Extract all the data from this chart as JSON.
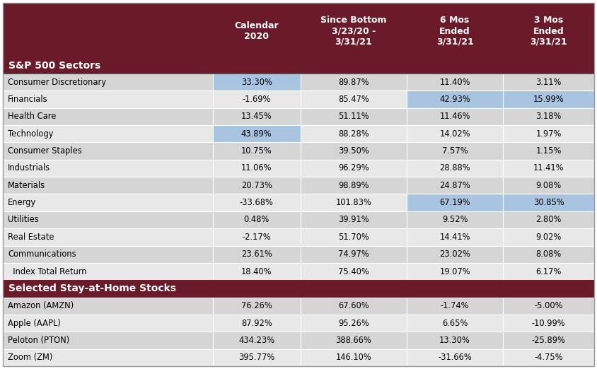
{
  "title_bg_color": "#6B1A2A",
  "header_text_color": "#FFFFFF",
  "section_header_bg": "#6B1A2A",
  "row_color_a": "#D5D5D5",
  "row_color_b": "#E8E8E8",
  "highlight_blue": "#A8C4E0",
  "col_header_line1": [
    "",
    "Since Bottom",
    "6 Mos",
    "3 Mos"
  ],
  "col_header_line2": [
    "Calendar",
    "3/23/20 -",
    "Ended",
    "Ended"
  ],
  "col_header_line3": [
    "2020",
    "3/31/21",
    "3/31/21",
    "3/31/21"
  ],
  "col0_header": "S&P 500 Sectors",
  "sector_rows": [
    {
      "name": "Consumer Discretionary",
      "vals": [
        "33.30%",
        "89.87%",
        "11.40%",
        "3.11%"
      ],
      "hl": [
        1
      ]
    },
    {
      "name": "Financials",
      "vals": [
        "-1.69%",
        "85.47%",
        "42.93%",
        "15.99%"
      ],
      "hl": [
        3,
        4
      ]
    },
    {
      "name": "Health Care",
      "vals": [
        "13.45%",
        "51.11%",
        "11.46%",
        "3.18%"
      ],
      "hl": []
    },
    {
      "name": "Technology",
      "vals": [
        "43.89%",
        "88.28%",
        "14.02%",
        "1.97%"
      ],
      "hl": [
        1
      ]
    },
    {
      "name": "Consumer Staples",
      "vals": [
        "10.75%",
        "39.50%",
        "7.57%",
        "1.15%"
      ],
      "hl": []
    },
    {
      "name": "Industrials",
      "vals": [
        "11.06%",
        "96.29%",
        "28.88%",
        "11.41%"
      ],
      "hl": []
    },
    {
      "name": "Materials",
      "vals": [
        "20.73%",
        "98.89%",
        "24.87%",
        "9.08%"
      ],
      "hl": []
    },
    {
      "name": "Energy",
      "vals": [
        "-33.68%",
        "101.83%",
        "67.19%",
        "30.85%"
      ],
      "hl": [
        3,
        4
      ]
    },
    {
      "name": "Utilities",
      "vals": [
        "0.48%",
        "39.91%",
        "9.52%",
        "2.80%"
      ],
      "hl": []
    },
    {
      "name": "Real Estate",
      "vals": [
        "-2.17%",
        "51.70%",
        "14.41%",
        "9.02%"
      ],
      "hl": []
    },
    {
      "name": "Communications",
      "vals": [
        "23.61%",
        "74.97%",
        "23.02%",
        "8.08%"
      ],
      "hl": []
    },
    {
      "name": "  Index Total Return",
      "vals": [
        "18.40%",
        "75.40%",
        "19.07%",
        "6.17%"
      ],
      "hl": []
    }
  ],
  "stock_rows": [
    {
      "name": "Amazon (AMZN)",
      "vals": [
        "76.26%",
        "67.60%",
        "-1.74%",
        "-5.00%"
      ]
    },
    {
      "name": "Apple (AAPL)",
      "vals": [
        "87.92%",
        "95.26%",
        "6.65%",
        "-10.99%"
      ]
    },
    {
      "name": "Peloton (PTON)",
      "vals": [
        "434.23%",
        "388.66%",
        "13.30%",
        "-25.89%"
      ]
    },
    {
      "name": "Zoom (ZM)",
      "vals": [
        "395.77%",
        "146.10%",
        "-31.66%",
        "-4.75%"
      ]
    }
  ],
  "fig_width": 8.44,
  "fig_height": 5.22,
  "dpi": 100
}
